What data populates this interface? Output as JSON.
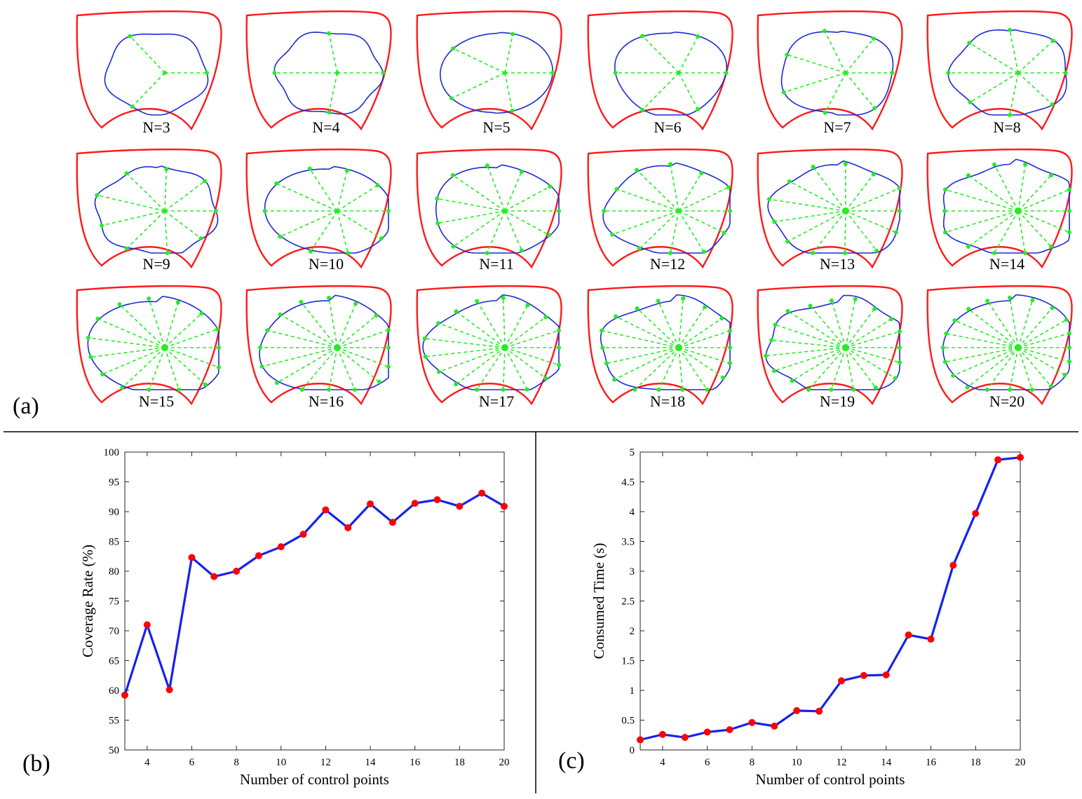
{
  "panel_labels": {
    "a": "(a)",
    "b": "(b)",
    "c": "(c)"
  },
  "shape_labels": [
    "N=3",
    "N=4",
    "N=5",
    "N=6",
    "N=7",
    "N=8",
    "N=9",
    "N=10",
    "N=11",
    "N=12",
    "N=13",
    "N=14",
    "N=15",
    "N=16",
    "N=17",
    "N=18",
    "N=19",
    "N=20"
  ],
  "colors": {
    "boundary": "#ff1a1a",
    "fit": "#1a2bd6",
    "spokes": "#22ee22",
    "line": "#1522ee",
    "marker": "#ff0000"
  },
  "chart_data": [
    {
      "type": "line",
      "xlabel": "Number of control points",
      "ylabel": "Coverage Rate (%)",
      "xlim": [
        3,
        20
      ],
      "ylim": [
        50,
        100
      ],
      "xticks": [
        4,
        6,
        8,
        10,
        12,
        14,
        16,
        18,
        20
      ],
      "yticks": [
        50,
        55,
        60,
        65,
        70,
        75,
        80,
        85,
        90,
        95,
        100
      ],
      "x": [
        3,
        4,
        5,
        6,
        7,
        8,
        9,
        10,
        11,
        12,
        13,
        14,
        15,
        16,
        17,
        18,
        19,
        20
      ],
      "y": [
        59.2,
        71.0,
        60.1,
        82.3,
        79.1,
        80.0,
        82.6,
        84.1,
        86.2,
        90.3,
        87.3,
        91.3,
        88.2,
        91.4,
        92.0,
        90.9,
        93.1,
        90.9
      ]
    },
    {
      "type": "line",
      "xlabel": "Number of control points",
      "ylabel": "Consumed Time (s)",
      "xlim": [
        3,
        20
      ],
      "ylim": [
        0,
        5
      ],
      "xticks": [
        4,
        6,
        8,
        10,
        12,
        14,
        16,
        18,
        20
      ],
      "yticks": [
        0,
        0.5,
        1,
        1.5,
        2,
        2.5,
        3,
        3.5,
        4,
        4.5,
        5
      ],
      "x": [
        3,
        4,
        5,
        6,
        7,
        8,
        9,
        10,
        11,
        12,
        13,
        14,
        15,
        16,
        17,
        18,
        19,
        20
      ],
      "y": [
        0.17,
        0.26,
        0.21,
        0.3,
        0.34,
        0.46,
        0.4,
        0.66,
        0.65,
        1.16,
        1.25,
        1.26,
        1.93,
        1.86,
        3.1,
        3.97,
        4.87,
        4.91
      ]
    }
  ]
}
